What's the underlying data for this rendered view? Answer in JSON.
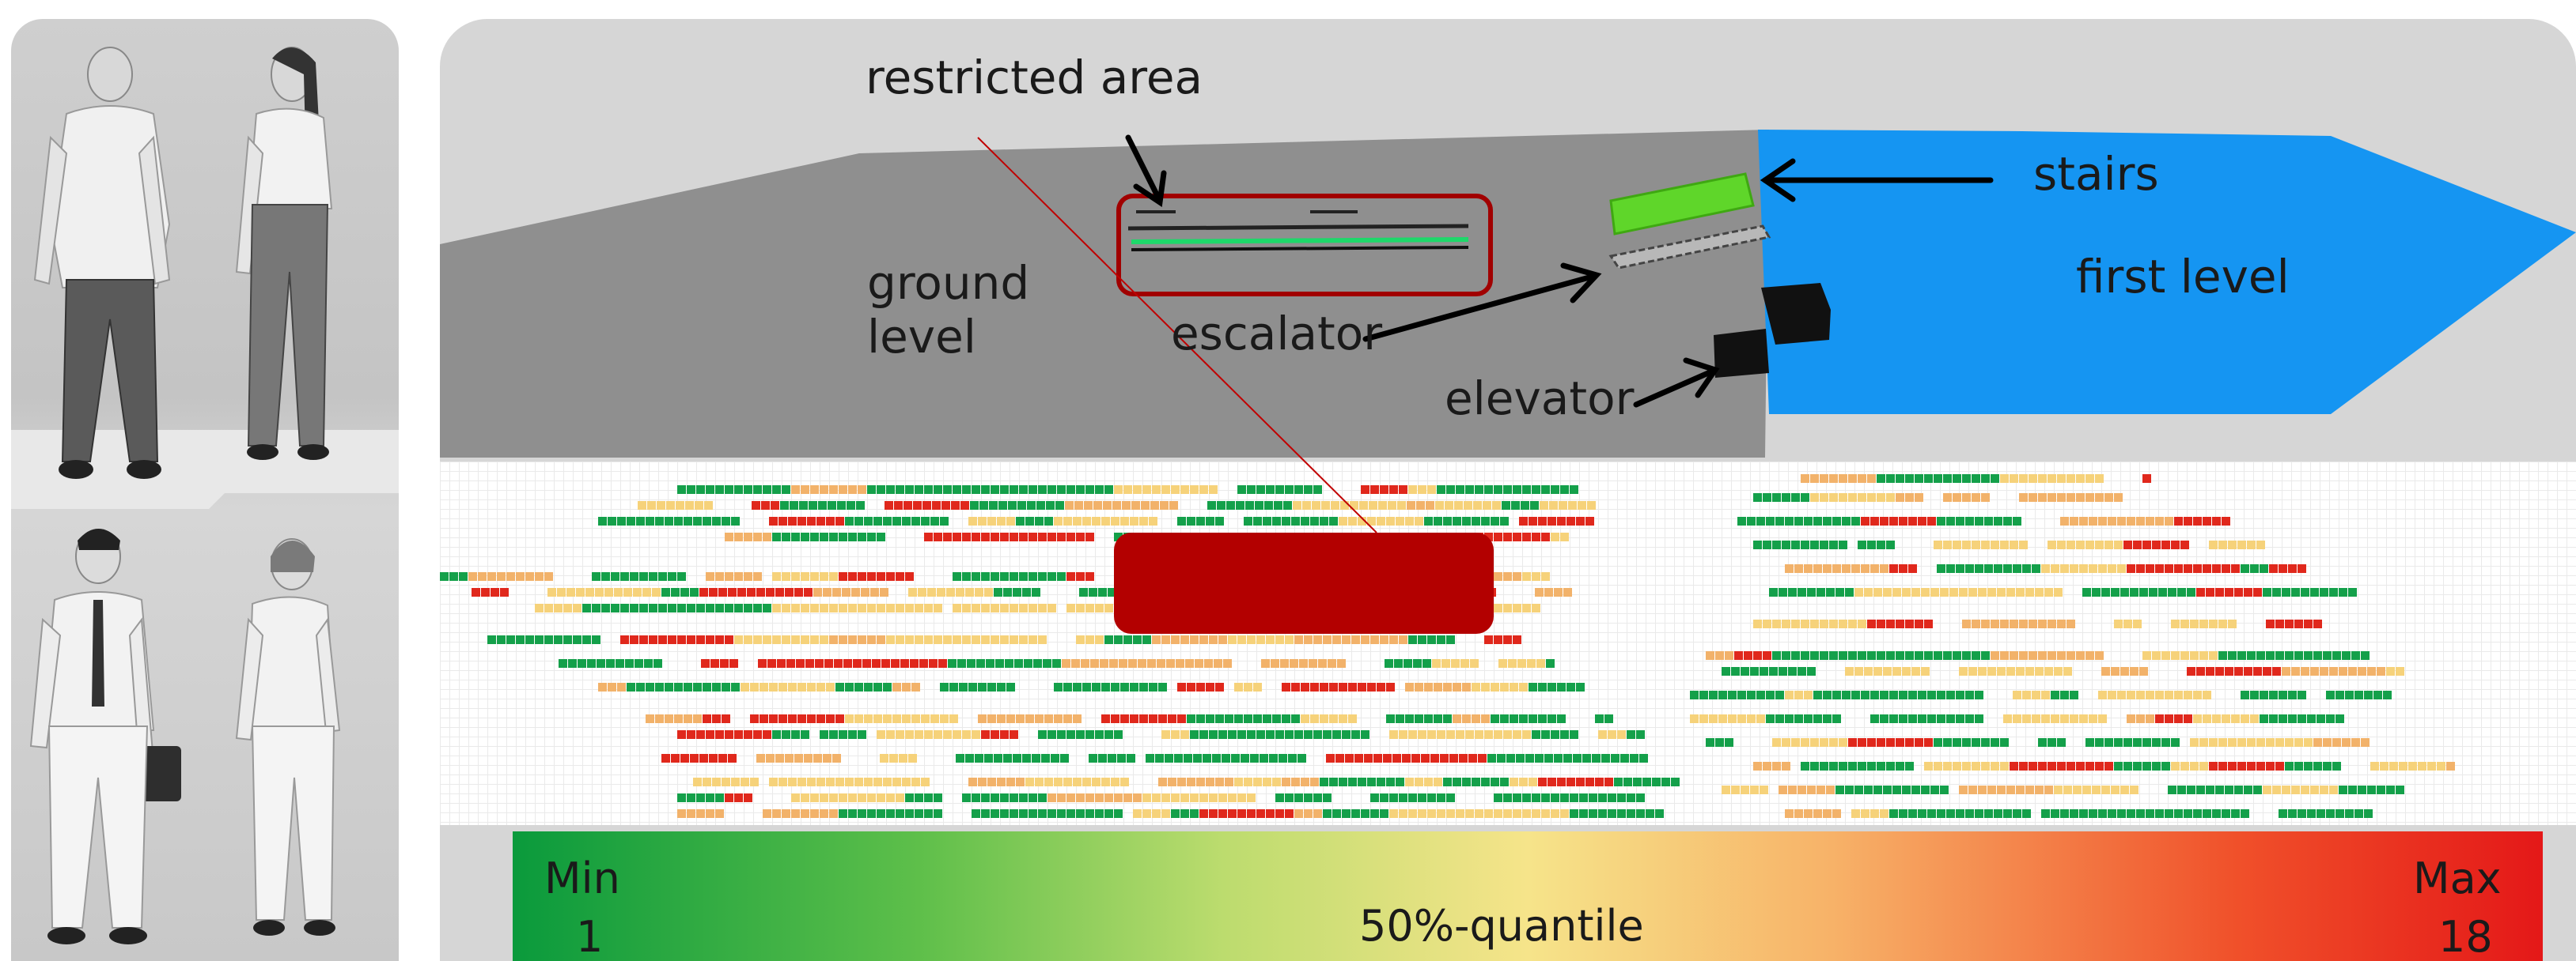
{
  "labels": {
    "restricted_area": "restricted area",
    "ground_level": "ground\nlevel",
    "escalator": "escalator",
    "elevator": "elevator",
    "stairs": "stairs",
    "first_level": "first level"
  },
  "colorbar": {
    "min_label": "Min",
    "min_value": "1",
    "center_label": "50%-quantile",
    "max_label": "Max",
    "max_value": "18"
  },
  "colors": {
    "ground_floor": "#8f8f8f",
    "first_level": "#1595f2",
    "stairs": "#5fd62a",
    "restricted_box": "#b30000",
    "heat_low": "#14a04a",
    "heat_mid": "#f6d27a",
    "heat_high": "#e0281c"
  },
  "figures": [
    {
      "name": "casual-man"
    },
    {
      "name": "casual-woman"
    },
    {
      "name": "business-man"
    },
    {
      "name": "business-woman"
    }
  ]
}
